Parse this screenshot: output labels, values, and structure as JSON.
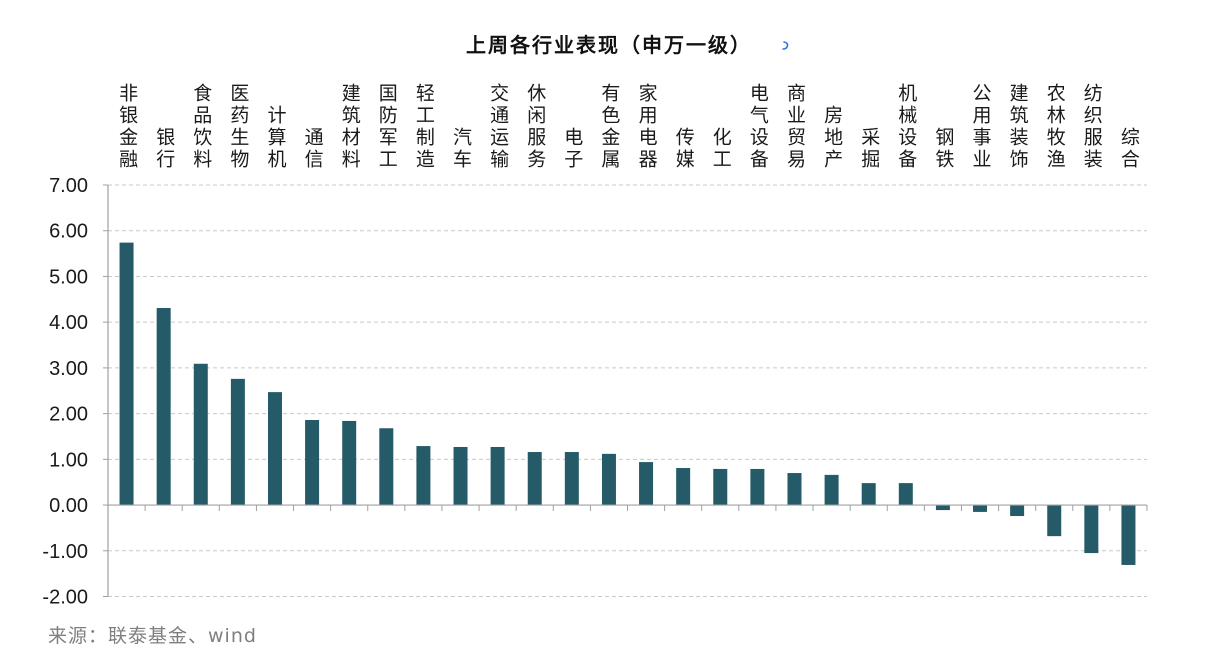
{
  "chart_data": {
    "type": "bar",
    "title": "上周各行业表现（申万一级）",
    "categories": [
      "非银金融",
      "银行",
      "食品饮料",
      "医药生物",
      "计算机",
      "通信",
      "建筑材料",
      "国防军工",
      "轻工制造",
      "汽车",
      "交通运输",
      "休闲服务",
      "电子",
      "有色金属",
      "家用电器",
      "传媒",
      "化工",
      "电气设备",
      "商业贸易",
      "房地产",
      "采掘",
      "机械设备",
      "钢铁",
      "公用事业",
      "建筑装饰",
      "农林牧渔",
      "纺织服装",
      "综合"
    ],
    "values": [
      5.74,
      4.31,
      3.09,
      2.76,
      2.47,
      1.86,
      1.84,
      1.68,
      1.29,
      1.27,
      1.27,
      1.16,
      1.16,
      1.12,
      0.94,
      0.81,
      0.79,
      0.79,
      0.7,
      0.66,
      0.48,
      0.48,
      -0.11,
      -0.15,
      -0.24,
      -0.68,
      -1.05,
      -1.31
    ],
    "ylim": [
      -2,
      7
    ],
    "yticks": [
      {
        "value": 7,
        "label": "7.00"
      },
      {
        "value": 6,
        "label": "6.00"
      },
      {
        "value": 5,
        "label": "5.00"
      },
      {
        "value": 4,
        "label": "4.00"
      },
      {
        "value": 3,
        "label": "3.00"
      },
      {
        "value": 2,
        "label": "2.00"
      },
      {
        "value": 1,
        "label": "1.00"
      },
      {
        "value": 0,
        "label": "0.00"
      },
      {
        "value": -1,
        "label": "-1.00"
      },
      {
        "value": -2,
        "label": "-2.00"
      }
    ],
    "category_labels_position": "top",
    "grid": true,
    "legend": "none"
  },
  "source": "来源：联泰基金、wind",
  "colors": {
    "bar": "#255B69",
    "grid": "#C8C8C8",
    "axis": "#A0A0A0",
    "title_mark": "#2E7BD6"
  }
}
